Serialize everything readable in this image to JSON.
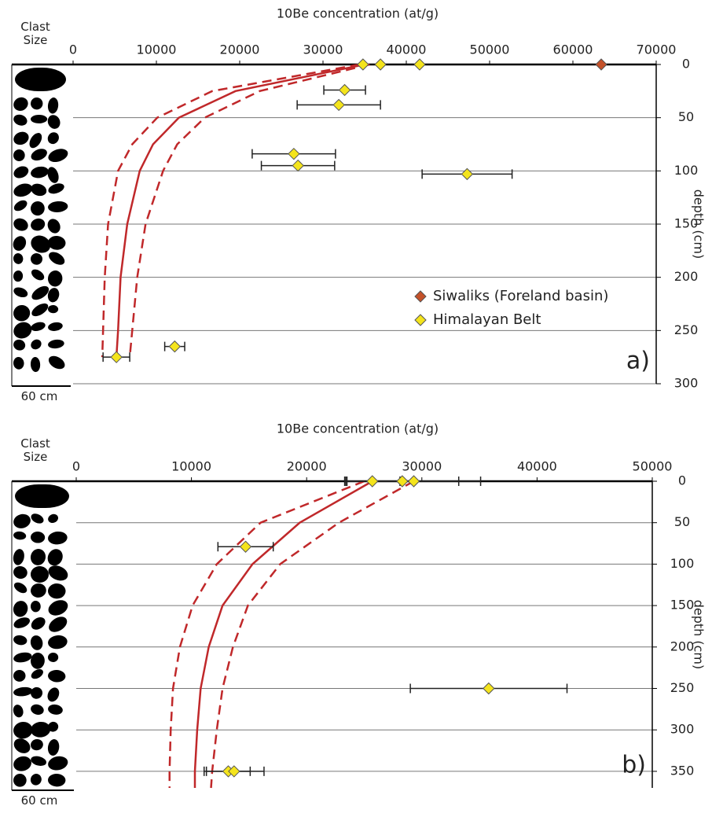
{
  "chart_data": [
    {
      "type": "scatter",
      "title": "10Be concentration (at/g)",
      "ylabel": "depth (cm)",
      "panel_label": "a)",
      "column_label": "Clast Size",
      "scale_label": "60 cm",
      "xlim": [
        0,
        70000
      ],
      "xticks": [
        0,
        10000,
        20000,
        30000,
        40000,
        50000,
        60000,
        70000
      ],
      "ylim": [
        0,
        300
      ],
      "yticks": [
        0,
        50,
        100,
        150,
        200,
        250,
        300
      ],
      "y_inverted": true,
      "grid": true,
      "legend": "right",
      "series": [
        {
          "name": "Siwaliks (Foreland basin)",
          "color": "#c4522a",
          "x": [
            63400
          ],
          "y": [
            0
          ],
          "xerr": [
            null
          ]
        },
        {
          "name": "Himalayan Belt",
          "color": "#f4e41c",
          "x": [
            34800,
            36900,
            41600,
            32600,
            31900,
            26500,
            27000,
            47300,
            12200,
            5200
          ],
          "y": [
            0,
            0,
            0,
            24,
            38,
            84,
            95,
            103,
            265,
            275
          ],
          "xerr": [
            null,
            null,
            null,
            2500,
            5000,
            5000,
            4400,
            5400,
            1200,
            1600
          ]
        }
      ],
      "curves": [
        {
          "color": "#c0282a",
          "dash": false,
          "y": [
            0,
            25,
            50,
            75,
            100,
            150,
            200,
            250,
            275
          ],
          "x": [
            35000,
            19500,
            12700,
            9600,
            8000,
            6500,
            5700,
            5400,
            5200
          ]
        },
        {
          "color": "#c0282a",
          "dash": true,
          "y": [
            0,
            25,
            50,
            75,
            100,
            150,
            200,
            250,
            275
          ],
          "x": [
            35600,
            22400,
            15800,
            12500,
            10800,
            8700,
            7700,
            7100,
            6800
          ]
        },
        {
          "color": "#c0282a",
          "dash": true,
          "y": [
            0,
            25,
            50,
            75,
            100,
            150,
            200,
            250,
            275
          ],
          "x": [
            34400,
            16700,
            10100,
            7100,
            5400,
            4200,
            3800,
            3600,
            3500
          ]
        }
      ]
    },
    {
      "type": "scatter",
      "title": "10Be concentration (at/g)",
      "ylabel": "depth (cm)",
      "panel_label": "b)",
      "column_label": "Clast Size",
      "scale_label": "60 cm",
      "xlim": [
        0,
        50000
      ],
      "xticks": [
        0,
        10000,
        20000,
        30000,
        40000,
        50000
      ],
      "ylim": [
        0,
        370
      ],
      "yticks": [
        0,
        50,
        100,
        150,
        200,
        250,
        300,
        350
      ],
      "y_inverted": true,
      "grid": true,
      "series": [
        {
          "name": "Himalayan Belt",
          "color": "#f4e41c",
          "x": [
            25700,
            28300,
            29300,
            14700,
            35800,
            13200,
            13700
          ],
          "y": [
            0,
            0,
            0,
            79,
            250,
            350,
            350
          ],
          "xerr": [
            2400,
            4900,
            5800,
            2400,
            6800,
            1900,
            2600
          ]
        }
      ],
      "curves": [
        {
          "color": "#c0282a",
          "dash": false,
          "y": [
            0,
            50,
            100,
            150,
            200,
            250,
            300,
            350,
            370
          ],
          "x": [
            25700,
            19400,
            15300,
            12700,
            11500,
            10800,
            10500,
            10300,
            10300
          ]
        },
        {
          "color": "#c0282a",
          "dash": true,
          "y": [
            0,
            50,
            100,
            150,
            200,
            250,
            300,
            350,
            370
          ],
          "x": [
            29300,
            22800,
            17700,
            14900,
            13600,
            12700,
            12200,
            11800,
            11700
          ]
        },
        {
          "color": "#c0282a",
          "dash": true,
          "y": [
            0,
            50,
            100,
            150,
            200,
            250,
            300,
            350,
            370
          ],
          "x": [
            25000,
            16000,
            12200,
            10100,
            9000,
            8400,
            8200,
            8100,
            8100
          ]
        }
      ]
    }
  ]
}
